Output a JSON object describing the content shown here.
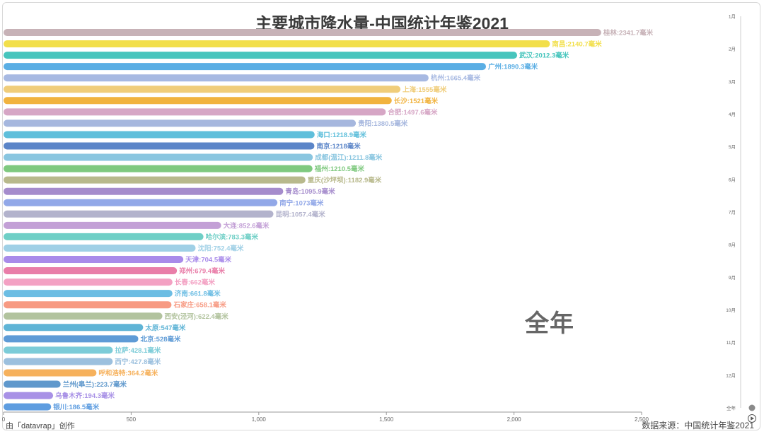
{
  "title": "主要城市降水量-中国统计年鉴2021",
  "period_label": "全年",
  "credit": "由「datavrap」创作",
  "source": "数据来源：中国统计年鉴2021",
  "colors": {
    "timeline": "#cfcfcf",
    "axis": "#999999"
  },
  "timeline": {
    "labels": [
      "1月",
      "2月",
      "3月",
      "4月",
      "5月",
      "6月",
      "7月",
      "8月",
      "9月",
      "10月",
      "11月",
      "12月",
      "全年"
    ],
    "current_index": 12
  },
  "chart_data": {
    "type": "bar",
    "orientation": "horizontal",
    "title": "主要城市降水量-中国统计年鉴2021",
    "unit": "毫米",
    "xlim": [
      0,
      2500
    ],
    "xticks": [
      0,
      500,
      1000,
      1500,
      2000,
      2500
    ],
    "xtick_labels": [
      "0",
      "500",
      "1,000",
      "1,500",
      "2,000",
      "2,500"
    ],
    "bars": [
      {
        "label": "桂林:2341.7毫米",
        "value": 2341.7,
        "color": "#c7b2b7"
      },
      {
        "label": "南昌:2140.7毫米",
        "value": 2140.7,
        "color": "#f2df4a"
      },
      {
        "label": "武汉:2012.3毫米",
        "value": 2012.3,
        "color": "#47c5bd"
      },
      {
        "label": "广州:1890.3毫米",
        "value": 1890.3,
        "color": "#5aaee4"
      },
      {
        "label": "杭州:1665.4毫米",
        "value": 1665.4,
        "color": "#a7b9e2"
      },
      {
        "label": "上海:1555毫米",
        "value": 1555,
        "color": "#f0cd7a"
      },
      {
        "label": "长沙:1521毫米",
        "value": 1521,
        "color": "#f1b33f"
      },
      {
        "label": "合肥:1497.6毫米",
        "value": 1497.6,
        "color": "#d6a6c5"
      },
      {
        "label": "贵阳:1380.5毫米",
        "value": 1380.5,
        "color": "#a6b7de"
      },
      {
        "label": "海口:1218.9毫米",
        "value": 1218.9,
        "color": "#5fbfdb"
      },
      {
        "label": "南京:1218毫米",
        "value": 1218,
        "color": "#5b85c8"
      },
      {
        "label": "成都(温江):1211.8毫米",
        "value": 1211.8,
        "color": "#8ac6e0"
      },
      {
        "label": "福州:1210.5毫米",
        "value": 1210.5,
        "color": "#7fc97f"
      },
      {
        "label": "重庆(沙坪坝):1182.9毫米",
        "value": 1182.9,
        "color": "#b8b98c"
      },
      {
        "label": "青岛:1095.9毫米",
        "value": 1095.9,
        "color": "#a58ccc"
      },
      {
        "label": "南宁:1073毫米",
        "value": 1073,
        "color": "#92a8e8"
      },
      {
        "label": "昆明:1057.4毫米",
        "value": 1057.4,
        "color": "#b3b3cc"
      },
      {
        "label": "大连:852.6毫米",
        "value": 852.6,
        "color": "#c3a0d6"
      },
      {
        "label": "哈尔滨:783.3毫米",
        "value": 783.3,
        "color": "#6fcfc6"
      },
      {
        "label": "沈阳:752.4毫米",
        "value": 752.4,
        "color": "#9fd0e6"
      },
      {
        "label": "天津:704.5毫米",
        "value": 704.5,
        "color": "#a98bea"
      },
      {
        "label": "郑州:679.4毫米",
        "value": 679.4,
        "color": "#e97ea9"
      },
      {
        "label": "长春:662毫米",
        "value": 662,
        "color": "#f3a1c3"
      },
      {
        "label": "济南:661.8毫米",
        "value": 661.8,
        "color": "#6cbde3"
      },
      {
        "label": "石家庄:658.1毫米",
        "value": 658.1,
        "color": "#f79a82"
      },
      {
        "label": "西安(泾河):622.4毫米",
        "value": 622.4,
        "color": "#b2c39e"
      },
      {
        "label": "太原:547毫米",
        "value": 547,
        "color": "#5fb4d6"
      },
      {
        "label": "北京:528毫米",
        "value": 528,
        "color": "#5e9bd6"
      },
      {
        "label": "拉萨:428.1毫米",
        "value": 428.1,
        "color": "#7cccd8"
      },
      {
        "label": "西宁:427.8毫米",
        "value": 427.8,
        "color": "#9cc0de"
      },
      {
        "label": "呼和浩特:364.2毫米",
        "value": 364.2,
        "color": "#f6b15c"
      },
      {
        "label": "兰州(皋兰):223.7毫米",
        "value": 223.7,
        "color": "#5f98cc"
      },
      {
        "label": "乌鲁木齐:194.3毫米",
        "value": 194.3,
        "color": "#a891e6"
      },
      {
        "label": "银川:186.5毫米",
        "value": 186.5,
        "color": "#5e9de0"
      }
    ]
  }
}
